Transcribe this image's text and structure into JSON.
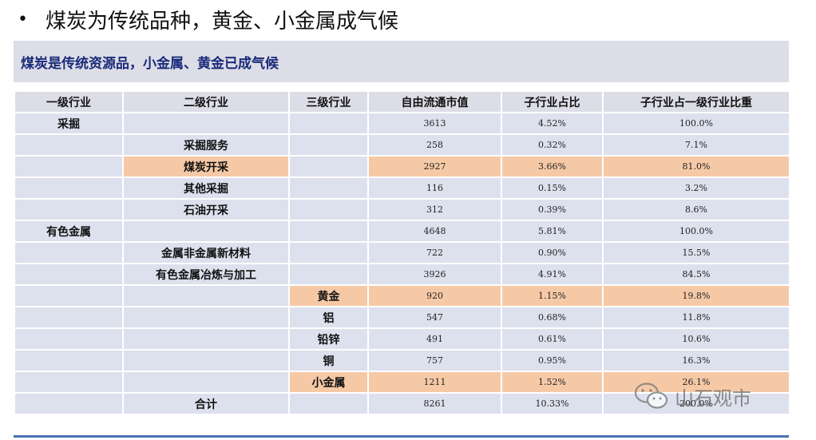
{
  "title": {
    "bullet": "•",
    "text": "煤炭为传统品种，黄金、小金属成气候"
  },
  "banner": "煤炭是传统资源品，小金属、黄金已成气候",
  "table": {
    "headers": [
      "一级行业",
      "二级行业",
      "三级行业",
      "自由流通市值",
      "子行业占比",
      "子行业占一级行业比重"
    ],
    "rows": [
      {
        "l1": "采掘",
        "l2": "",
        "l3": "",
        "value": "3613",
        "share": "4.52%",
        "ratio": "100.0%",
        "hl2": false,
        "hl3": false
      },
      {
        "l1": "",
        "l2": "采掘服务",
        "l3": "",
        "value": "258",
        "share": "0.32%",
        "ratio": "7.1%",
        "hl2": false,
        "hl3": false
      },
      {
        "l1": "",
        "l2": "煤炭开采",
        "l3": "",
        "value": "2927",
        "share": "3.66%",
        "ratio": "81.0%",
        "hl2": true,
        "hl3": false
      },
      {
        "l1": "",
        "l2": "其他采掘",
        "l3": "",
        "value": "116",
        "share": "0.15%",
        "ratio": "3.2%",
        "hl2": false,
        "hl3": false
      },
      {
        "l1": "",
        "l2": "石油开采",
        "l3": "",
        "value": "312",
        "share": "0.39%",
        "ratio": "8.6%",
        "hl2": false,
        "hl3": false
      },
      {
        "l1": "有色金属",
        "l2": "",
        "l3": "",
        "value": "4648",
        "share": "5.81%",
        "ratio": "100.0%",
        "hl2": false,
        "hl3": false
      },
      {
        "l1": "",
        "l2": "金属非金属新材料",
        "l3": "",
        "value": "722",
        "share": "0.90%",
        "ratio": "15.5%",
        "hl2": false,
        "hl3": false
      },
      {
        "l1": "",
        "l2": "有色金属冶炼与加工",
        "l3": "",
        "value": "3926",
        "share": "4.91%",
        "ratio": "84.5%",
        "hl2": false,
        "hl3": false
      },
      {
        "l1": "",
        "l2": "",
        "l3": "黄金",
        "value": "920",
        "share": "1.15%",
        "ratio": "19.8%",
        "hl2": false,
        "hl3": true
      },
      {
        "l1": "",
        "l2": "",
        "l3": "铝",
        "value": "547",
        "share": "0.68%",
        "ratio": "11.8%",
        "hl2": false,
        "hl3": false
      },
      {
        "l1": "",
        "l2": "",
        "l3": "铅锌",
        "value": "491",
        "share": "0.61%",
        "ratio": "10.6%",
        "hl2": false,
        "hl3": false
      },
      {
        "l1": "",
        "l2": "",
        "l3": "铜",
        "value": "757",
        "share": "0.95%",
        "ratio": "16.3%",
        "hl2": false,
        "hl3": false
      },
      {
        "l1": "",
        "l2": "",
        "l3": "小金属",
        "value": "1211",
        "share": "1.52%",
        "ratio": "26.1%",
        "hl2": false,
        "hl3": true
      },
      {
        "l1": "",
        "l2": "合计",
        "l3": "",
        "value": "8261",
        "share": "10.33%",
        "ratio": "200.0%",
        "hl2": false,
        "hl3": false
      }
    ]
  },
  "watermark": {
    "text": "山石观市",
    "icon": "wechat-icon"
  }
}
